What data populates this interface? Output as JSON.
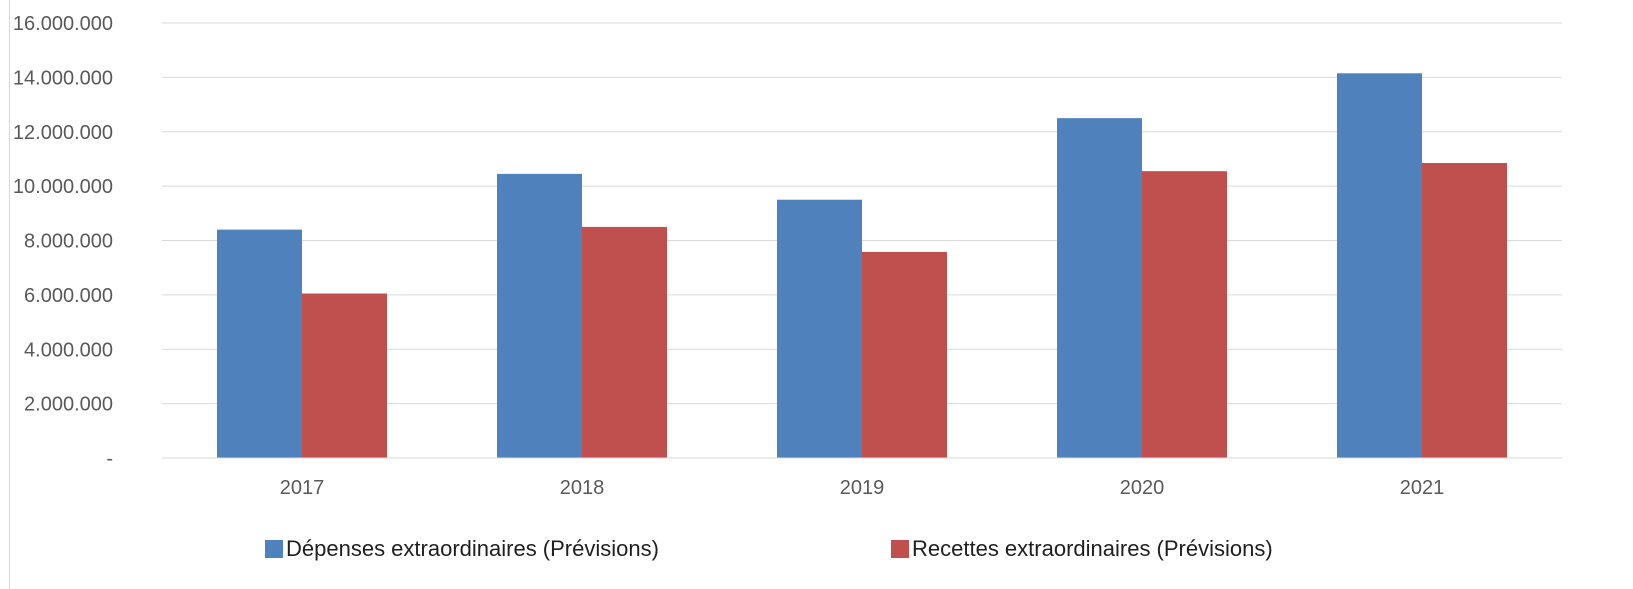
{
  "chart_data": {
    "type": "bar",
    "categories": [
      "2017",
      "2018",
      "2019",
      "2020",
      "2021"
    ],
    "series": [
      {
        "name": "Dépenses extraordinaires (Prévisions)",
        "color": "#4f81bd",
        "values": [
          8400000,
          10450000,
          9500000,
          12500000,
          14150000
        ]
      },
      {
        "name": "Recettes extraordinaires (Prévisions)",
        "color": "#c0504d",
        "values": [
          6050000,
          8500000,
          7580000,
          10550000,
          10850000
        ]
      }
    ],
    "ylim": [
      0,
      16000000
    ],
    "yticks": [
      0,
      2000000,
      4000000,
      6000000,
      8000000,
      10000000,
      12000000,
      14000000,
      16000000
    ],
    "ytick_labels": [
      "-",
      "2.000.000",
      "4.000.000",
      "6.000.000",
      "8.000.000",
      "10.000.000",
      "12.000.000",
      "14.000.000",
      "16.000.000"
    ],
    "grid": true,
    "legend_position": "bottom",
    "title": "",
    "xlabel": "",
    "ylabel": ""
  }
}
